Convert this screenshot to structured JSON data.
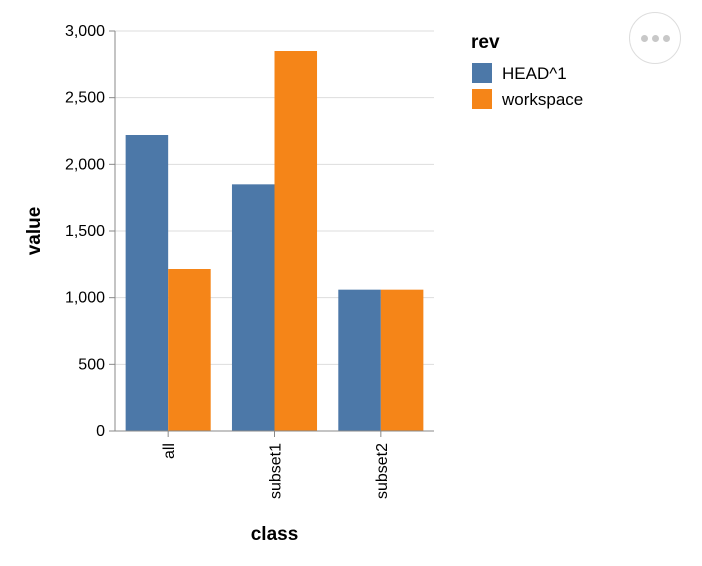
{
  "chart_data": {
    "type": "bar",
    "grouped": true,
    "categories": [
      "all",
      "subset1",
      "subset2"
    ],
    "series": [
      {
        "name": "HEAD^1",
        "color": "#4c78a8",
        "values": [
          2220,
          1850,
          1060
        ]
      },
      {
        "name": "workspace",
        "color": "#f58518",
        "values": [
          1215,
          2850,
          1060
        ]
      }
    ],
    "xlabel": "class",
    "ylabel": "value",
    "ylim": [
      0,
      3000
    ],
    "yticks": [
      0,
      500,
      1000,
      1500,
      2000,
      2500,
      3000
    ],
    "ytick_labels": [
      "0",
      "500",
      "1,000",
      "1,500",
      "2,000",
      "2,500",
      "3,000"
    ],
    "grid": true,
    "legend": {
      "title": "rev",
      "position": "right"
    }
  },
  "actions_menu": {
    "icon": "ellipsis-icon"
  }
}
